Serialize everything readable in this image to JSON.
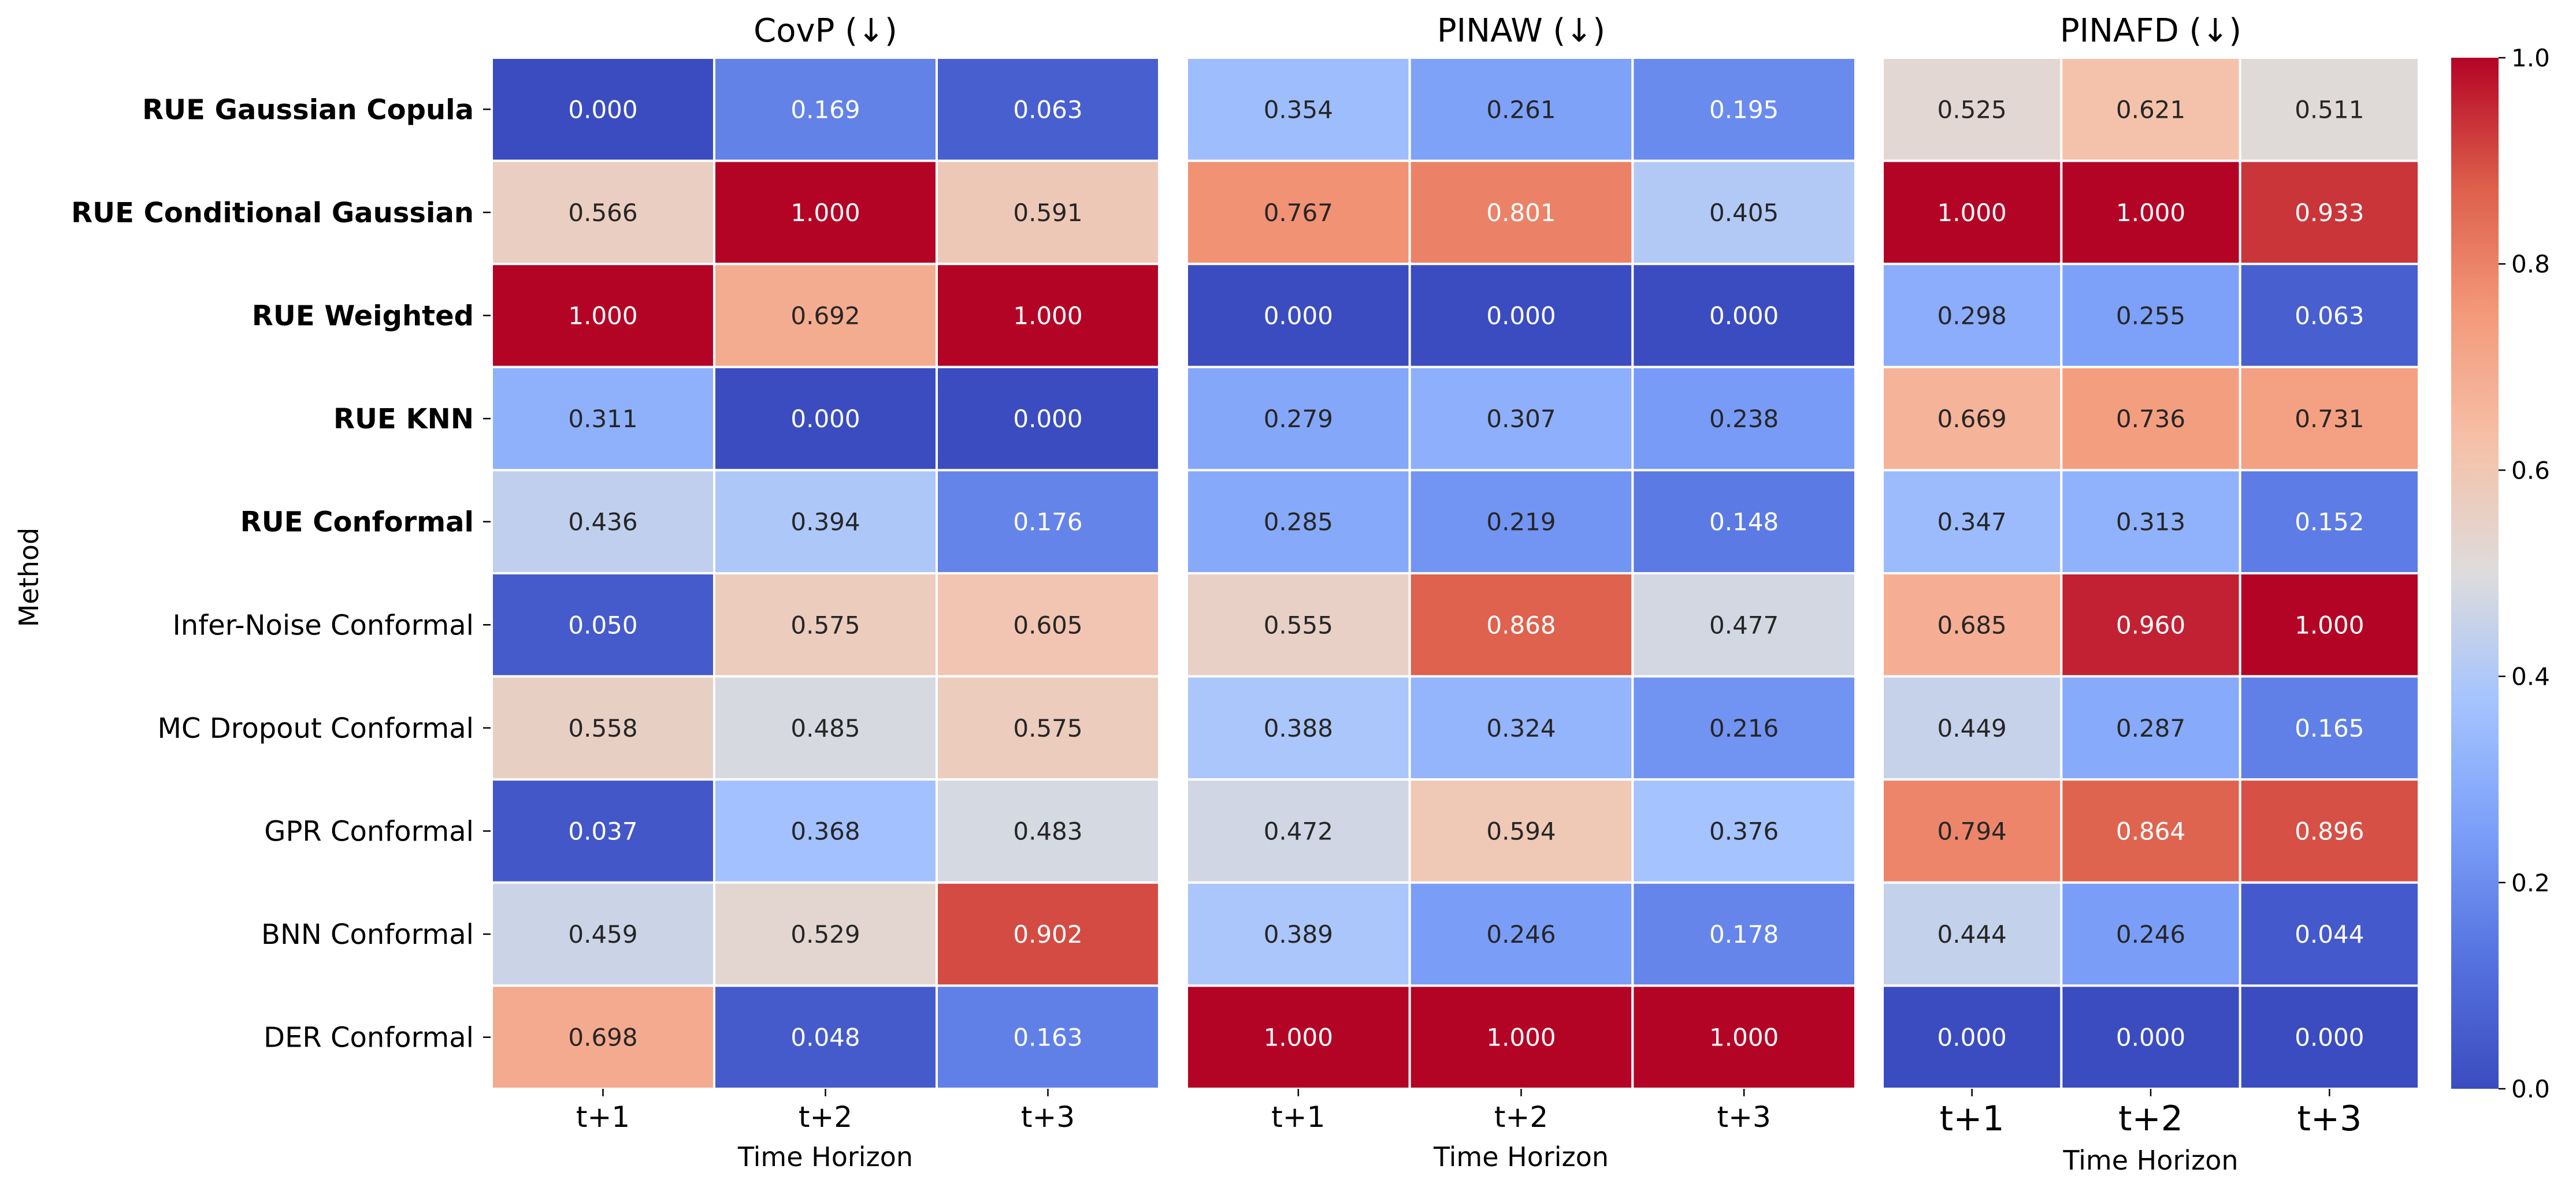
{
  "chart_data": {
    "type": "heatmap",
    "ylabel": "Method",
    "rows": [
      {
        "label": "RUE Gaussian Copula",
        "bold": true
      },
      {
        "label": "RUE Conditional Gaussian",
        "bold": true
      },
      {
        "label": "RUE Weighted",
        "bold": true
      },
      {
        "label": "RUE KNN",
        "bold": true
      },
      {
        "label": "RUE Conformal",
        "bold": true
      },
      {
        "label": "Infer-Noise Conformal",
        "bold": false
      },
      {
        "label": "MC Dropout Conformal",
        "bold": false
      },
      {
        "label": "GPR Conformal",
        "bold": false
      },
      {
        "label": "BNN Conformal",
        "bold": false
      },
      {
        "label": "DER Conformal",
        "bold": false
      }
    ],
    "colorbar": {
      "min": 0.0,
      "max": 1.0,
      "ticks": [
        "0.0",
        "0.2",
        "0.4",
        "0.6",
        "0.8",
        "1.0"
      ],
      "colormap": "coolwarm"
    },
    "panels": [
      {
        "title": "CovP (↓)",
        "xlabel": "Time Horizon",
        "columns": [
          "t+1",
          "t+2",
          "t+3"
        ],
        "values": [
          [
            0.0,
            0.169,
            0.063
          ],
          [
            0.566,
            1.0,
            0.591
          ],
          [
            1.0,
            0.692,
            1.0
          ],
          [
            0.311,
            0.0,
            0.0
          ],
          [
            0.436,
            0.394,
            0.176
          ],
          [
            0.05,
            0.575,
            0.605
          ],
          [
            0.558,
            0.485,
            0.575
          ],
          [
            0.037,
            0.368,
            0.483
          ],
          [
            0.459,
            0.529,
            0.902
          ],
          [
            0.698,
            0.048,
            0.163
          ]
        ]
      },
      {
        "title": "PINAW (↓)",
        "xlabel": "Time Horizon",
        "columns": [
          "t+1",
          "t+2",
          "t+3"
        ],
        "values": [
          [
            0.354,
            0.261,
            0.195
          ],
          [
            0.767,
            0.801,
            0.405
          ],
          [
            0.0,
            0.0,
            0.0
          ],
          [
            0.279,
            0.307,
            0.238
          ],
          [
            0.285,
            0.219,
            0.148
          ],
          [
            0.555,
            0.868,
            0.477
          ],
          [
            0.388,
            0.324,
            0.216
          ],
          [
            0.472,
            0.594,
            0.376
          ],
          [
            0.389,
            0.246,
            0.178
          ],
          [
            1.0,
            1.0,
            1.0
          ]
        ]
      },
      {
        "title": "PINAFD (↓)",
        "xlabel": "Time Horizon",
        "columns": [
          "t+1",
          "t+2",
          "t+3"
        ],
        "values": [
          [
            0.525,
            0.621,
            0.511
          ],
          [
            1.0,
            1.0,
            0.933
          ],
          [
            0.298,
            0.255,
            0.063
          ],
          [
            0.669,
            0.736,
            0.731
          ],
          [
            0.347,
            0.313,
            0.152
          ],
          [
            0.685,
            0.96,
            1.0
          ],
          [
            0.449,
            0.287,
            0.165
          ],
          [
            0.794,
            0.864,
            0.896
          ],
          [
            0.444,
            0.246,
            0.044
          ],
          [
            0.0,
            0.0,
            0.0
          ]
        ]
      }
    ]
  }
}
